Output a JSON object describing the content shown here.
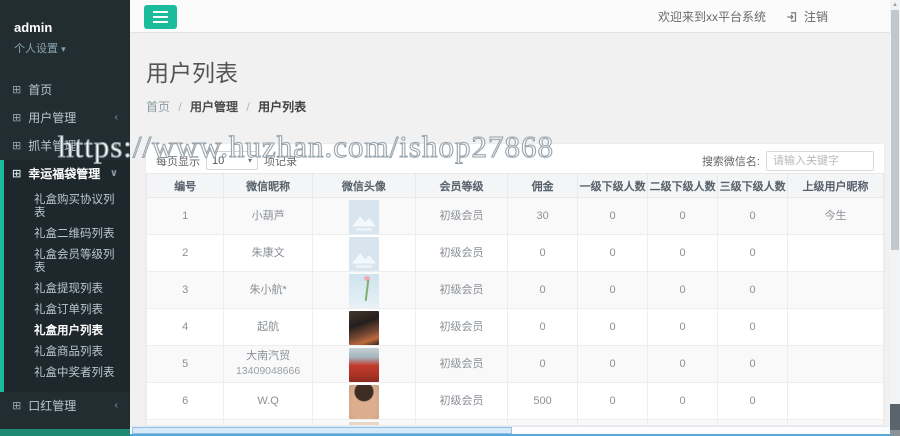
{
  "watermark": "https://www.huzhan.com/ishop27868",
  "colors": {
    "accent_teal": "#1abc9c",
    "sidebar_bg": "#222d32",
    "sidebar_active_bg": "#1e282c",
    "hscroll_blue": "#57a7d8"
  },
  "icons": {
    "grid": "⊞",
    "chevron_left": "‹",
    "chevron_down": "∨",
    "caret_down": "▾",
    "hamburger": "≡"
  },
  "sidebar": {
    "username": "admin",
    "settings_label": "个人设置",
    "items_top": [
      {
        "key": "home",
        "label": "首页",
        "chevron": ""
      },
      {
        "key": "user-mgmt",
        "label": "用户管理",
        "chevron": "left"
      },
      {
        "key": "zhuayang-mgmt",
        "label": "抓羊管理",
        "chevron": "left"
      }
    ],
    "active_section": {
      "key": "lucky-bag-mgmt",
      "label": "幸运福袋管理",
      "chevron": "down",
      "submenu": [
        "礼盒购买协议列表",
        "礼盒二维码列表",
        "礼盒会员等级列表",
        "礼盒提现列表",
        "礼盒订单列表",
        "礼盒用户列表",
        "礼盒商品列表",
        "礼盒中奖者列表"
      ],
      "active_item": "礼盒用户列表"
    },
    "items_bottom": [
      {
        "key": "lipstick-mgmt",
        "label": "口红管理",
        "chevron": "left"
      }
    ]
  },
  "topbar": {
    "welcome": "欢迎来到xx平台系统",
    "logout_label": "注销"
  },
  "page": {
    "title": "用户列表",
    "breadcrumb": [
      "首页",
      "用户管理",
      "用户列表"
    ],
    "breadcrumb_separator": "/"
  },
  "toolbar": {
    "page_size_prefix": "每页显示",
    "page_size_value": "10",
    "page_size_suffix": "项记录",
    "search_label": "搜索微信名:",
    "search_placeholder": "请输入关键字"
  },
  "table": {
    "headers": [
      "编号",
      "微信昵称",
      "微信头像",
      "会员等级",
      "佣金",
      "一级下级人数",
      "二级下级人数",
      "三级下级人数",
      "上级用户昵称"
    ],
    "rows": [
      {
        "id": "1",
        "nickname": "小葫芦",
        "nickname2": "",
        "avatar": "image-placeholder",
        "level": "初级会员",
        "commission": "30",
        "l1": "0",
        "l2": "0",
        "l3": "0",
        "parent": "今生"
      },
      {
        "id": "2",
        "nickname": "朱康文",
        "nickname2": "",
        "avatar": "image-placeholder",
        "level": "初级会员",
        "commission": "0",
        "l1": "0",
        "l2": "0",
        "l3": "0",
        "parent": ""
      },
      {
        "id": "3",
        "nickname": "朱小航*",
        "nickname2": "",
        "avatar": "photo-flower",
        "level": "初级会员",
        "commission": "0",
        "l1": "0",
        "l2": "0",
        "l3": "0",
        "parent": ""
      },
      {
        "id": "4",
        "nickname": "起航",
        "nickname2": "",
        "avatar": "photo-dark",
        "level": "初级会员",
        "commission": "0",
        "l1": "0",
        "l2": "0",
        "l3": "0",
        "parent": ""
      },
      {
        "id": "5",
        "nickname": "大南汽贸",
        "nickname2": "13409048666",
        "avatar": "photo-car",
        "level": "初级会员",
        "commission": "0",
        "l1": "0",
        "l2": "0",
        "l3": "0",
        "parent": ""
      },
      {
        "id": "6",
        "nickname": "W.Q",
        "nickname2": "",
        "avatar": "photo-face",
        "level": "初级会员",
        "commission": "500",
        "l1": "0",
        "l2": "0",
        "l3": "0",
        "parent": ""
      },
      {
        "id": "",
        "nickname": "",
        "nickname2": "",
        "avatar": "photo-partial",
        "level": "",
        "commission": "",
        "l1": "",
        "l2": "",
        "l3": "",
        "parent": ""
      }
    ]
  }
}
